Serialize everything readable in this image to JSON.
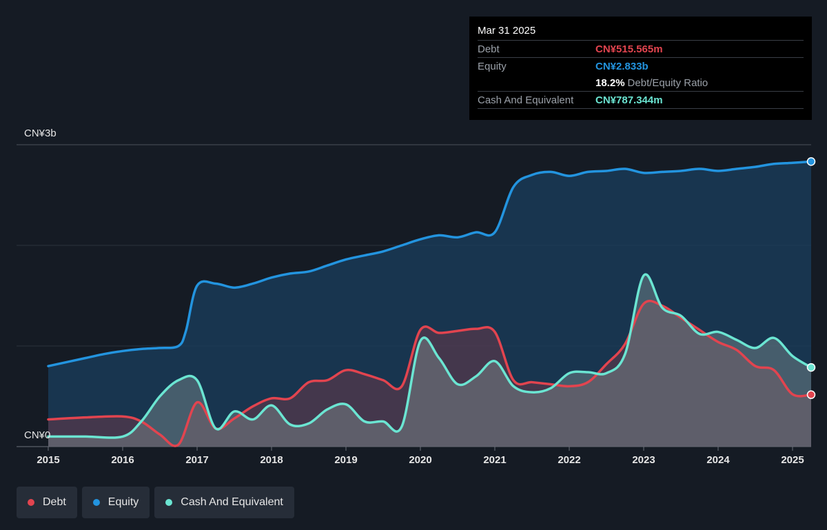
{
  "tooltip": {
    "date": "Mar 31 2025",
    "debt_label": "Debt",
    "debt_value": "CN¥515.565m",
    "equity_label": "Equity",
    "equity_value": "CN¥2.833b",
    "ratio_value": "18.2%",
    "ratio_label": "Debt/Equity Ratio",
    "cash_label": "Cash And Equivalent",
    "cash_value": "CN¥787.344m"
  },
  "legend": [
    {
      "label": "Debt",
      "color": "#e2444f"
    },
    {
      "label": "Equity",
      "color": "#2394df"
    },
    {
      "label": "Cash And Equivalent",
      "color": "#6be5d2"
    }
  ],
  "colors": {
    "debt": "#e2444f",
    "equity": "#2394df",
    "cash": "#6be5d2",
    "background": "#151b24"
  },
  "chart_data": {
    "type": "area",
    "y_top_label": "CN¥3b",
    "y_bottom_label": "CN¥0",
    "ylim": [
      0,
      3.0
    ],
    "xlim": [
      2015.0,
      2025.25
    ],
    "x_ticks": [
      "2015",
      "2016",
      "2017",
      "2018",
      "2019",
      "2020",
      "2021",
      "2022",
      "2023",
      "2024",
      "2025"
    ],
    "series": [
      {
        "name": "Equity",
        "points": [
          [
            2015.0,
            0.8
          ],
          [
            2015.5,
            0.88
          ],
          [
            2015.75,
            0.92
          ],
          [
            2016.0,
            0.95
          ],
          [
            2016.25,
            0.97
          ],
          [
            2016.5,
            0.98
          ],
          [
            2016.75,
            1.0
          ],
          [
            2016.85,
            1.15
          ],
          [
            2017.0,
            1.6
          ],
          [
            2017.25,
            1.62
          ],
          [
            2017.5,
            1.58
          ],
          [
            2017.75,
            1.62
          ],
          [
            2018.0,
            1.68
          ],
          [
            2018.25,
            1.72
          ],
          [
            2018.5,
            1.74
          ],
          [
            2018.75,
            1.8
          ],
          [
            2019.0,
            1.86
          ],
          [
            2019.25,
            1.9
          ],
          [
            2019.5,
            1.94
          ],
          [
            2019.75,
            2.0
          ],
          [
            2020.0,
            2.06
          ],
          [
            2020.25,
            2.1
          ],
          [
            2020.5,
            2.08
          ],
          [
            2020.75,
            2.13
          ],
          [
            2021.0,
            2.13
          ],
          [
            2021.25,
            2.58
          ],
          [
            2021.5,
            2.7
          ],
          [
            2021.75,
            2.73
          ],
          [
            2022.0,
            2.69
          ],
          [
            2022.25,
            2.73
          ],
          [
            2022.5,
            2.74
          ],
          [
            2022.75,
            2.76
          ],
          [
            2023.0,
            2.72
          ],
          [
            2023.25,
            2.73
          ],
          [
            2023.5,
            2.74
          ],
          [
            2023.75,
            2.76
          ],
          [
            2024.0,
            2.74
          ],
          [
            2024.25,
            2.76
          ],
          [
            2024.5,
            2.78
          ],
          [
            2024.75,
            2.81
          ],
          [
            2025.0,
            2.82
          ],
          [
            2025.25,
            2.833
          ]
        ]
      },
      {
        "name": "Debt",
        "points": [
          [
            2015.0,
            0.27
          ],
          [
            2015.5,
            0.29
          ],
          [
            2016.0,
            0.3
          ],
          [
            2016.25,
            0.25
          ],
          [
            2016.5,
            0.12
          ],
          [
            2016.75,
            0.02
          ],
          [
            2017.0,
            0.44
          ],
          [
            2017.25,
            0.18
          ],
          [
            2017.5,
            0.28
          ],
          [
            2017.75,
            0.4
          ],
          [
            2018.0,
            0.48
          ],
          [
            2018.25,
            0.48
          ],
          [
            2018.5,
            0.64
          ],
          [
            2018.75,
            0.66
          ],
          [
            2019.0,
            0.76
          ],
          [
            2019.25,
            0.72
          ],
          [
            2019.5,
            0.66
          ],
          [
            2019.75,
            0.6
          ],
          [
            2020.0,
            1.16
          ],
          [
            2020.25,
            1.13
          ],
          [
            2020.5,
            1.15
          ],
          [
            2020.75,
            1.17
          ],
          [
            2021.0,
            1.14
          ],
          [
            2021.25,
            0.66
          ],
          [
            2021.5,
            0.64
          ],
          [
            2021.75,
            0.62
          ],
          [
            2022.0,
            0.6
          ],
          [
            2022.25,
            0.64
          ],
          [
            2022.5,
            0.82
          ],
          [
            2022.75,
            1.02
          ],
          [
            2023.0,
            1.42
          ],
          [
            2023.25,
            1.4
          ],
          [
            2023.5,
            1.28
          ],
          [
            2023.75,
            1.16
          ],
          [
            2024.0,
            1.04
          ],
          [
            2024.25,
            0.96
          ],
          [
            2024.5,
            0.8
          ],
          [
            2024.75,
            0.76
          ],
          [
            2025.0,
            0.52
          ],
          [
            2025.25,
            0.516
          ]
        ]
      },
      {
        "name": "Cash And Equivalent",
        "points": [
          [
            2015.0,
            0.1
          ],
          [
            2015.5,
            0.1
          ],
          [
            2016.0,
            0.1
          ],
          [
            2016.25,
            0.25
          ],
          [
            2016.5,
            0.5
          ],
          [
            2016.75,
            0.66
          ],
          [
            2017.0,
            0.66
          ],
          [
            2017.25,
            0.18
          ],
          [
            2017.5,
            0.35
          ],
          [
            2017.75,
            0.27
          ],
          [
            2018.0,
            0.41
          ],
          [
            2018.25,
            0.22
          ],
          [
            2018.5,
            0.23
          ],
          [
            2018.75,
            0.37
          ],
          [
            2019.0,
            0.42
          ],
          [
            2019.25,
            0.25
          ],
          [
            2019.5,
            0.25
          ],
          [
            2019.75,
            0.2
          ],
          [
            2020.0,
            1.05
          ],
          [
            2020.25,
            0.88
          ],
          [
            2020.5,
            0.62
          ],
          [
            2020.75,
            0.7
          ],
          [
            2021.0,
            0.85
          ],
          [
            2021.25,
            0.6
          ],
          [
            2021.5,
            0.54
          ],
          [
            2021.75,
            0.58
          ],
          [
            2022.0,
            0.73
          ],
          [
            2022.25,
            0.74
          ],
          [
            2022.5,
            0.73
          ],
          [
            2022.75,
            0.92
          ],
          [
            2023.0,
            1.7
          ],
          [
            2023.25,
            1.38
          ],
          [
            2023.5,
            1.3
          ],
          [
            2023.75,
            1.12
          ],
          [
            2024.0,
            1.14
          ],
          [
            2024.25,
            1.06
          ],
          [
            2024.5,
            0.98
          ],
          [
            2024.75,
            1.08
          ],
          [
            2025.0,
            0.9
          ],
          [
            2025.25,
            0.787
          ]
        ]
      }
    ]
  }
}
